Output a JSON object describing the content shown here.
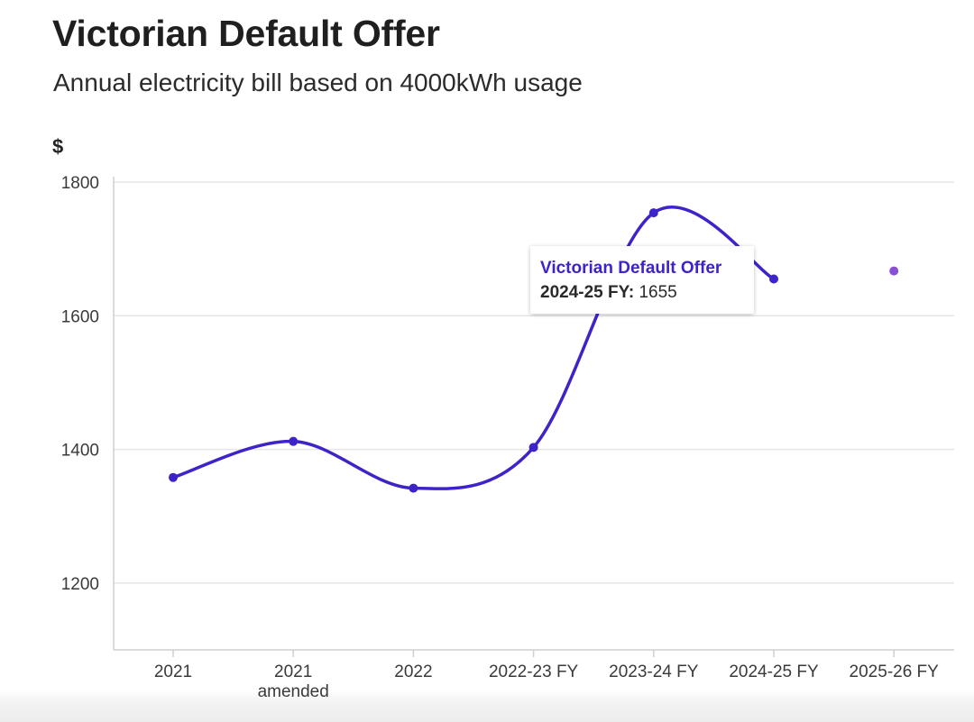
{
  "chart_data": {
    "type": "line",
    "title": "Victorian Default Offer",
    "subtitle": "Annual electricity bill based on 4000kWh usage",
    "ylabel": "$",
    "xlabel": "",
    "ylim": [
      1100,
      1800
    ],
    "yticks": [
      1200,
      1400,
      1600,
      1800
    ],
    "grid": true,
    "categories": [
      [
        "2021"
      ],
      [
        "2021",
        "amended"
      ],
      [
        "2022"
      ],
      [
        "2022-23 FY"
      ],
      [
        "2023-24 FY"
      ],
      [
        "2024-25 FY"
      ],
      [
        "2025-26 FY"
      ]
    ],
    "series": [
      {
        "name": "Victorian Default Offer",
        "values": [
          1358,
          1412,
          1342,
          1403,
          1754,
          1655,
          null
        ],
        "color": "#3d24c9"
      },
      {
        "name": "",
        "values": [
          null,
          null,
          null,
          null,
          null,
          null,
          1667
        ],
        "color": "#8a4fd8"
      }
    ],
    "tooltip": {
      "series": "Victorian Default Offer",
      "key": "2024-25 FY:",
      "value": "1655"
    }
  }
}
